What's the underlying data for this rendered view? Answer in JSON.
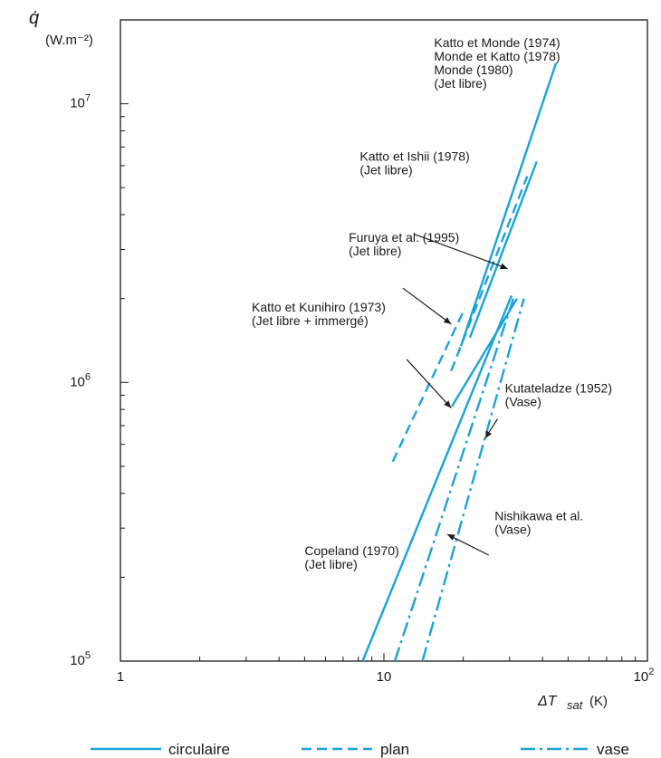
{
  "chart_data": {
    "type": "line",
    "x_scale": "log",
    "y_scale": "log",
    "xlim": [
      1,
      100
    ],
    "ylim": [
      100000,
      20000000
    ],
    "grid": false,
    "legend_position": "bottom",
    "ylabel": {
      "symbol": "q̇",
      "unit": "(W.m⁻²)"
    },
    "xlabel": {
      "main": "ΔT",
      "sub": "sat",
      "unit": "(K)"
    },
    "x_ticks": [
      {
        "value": 1,
        "base": "1",
        "exp": ""
      },
      {
        "value": 10,
        "base": "10",
        "exp": ""
      },
      {
        "value": 100,
        "base": "10",
        "exp": "2"
      }
    ],
    "y_ticks": [
      {
        "value": 100000,
        "base": "10",
        "exp": "5"
      },
      {
        "value": 1000000,
        "base": "10",
        "exp": "6"
      },
      {
        "value": 10000000,
        "base": "10",
        "exp": "7"
      }
    ],
    "series": [
      {
        "style": "circulaire",
        "points": [
          [
            19.6,
            1350000
          ],
          [
            45.0,
            14000000
          ]
        ]
      },
      {
        "style": "circulaire",
        "points": [
          [
            21.2,
            1450000
          ],
          [
            38.0,
            6200000
          ]
        ]
      },
      {
        "style": "plan",
        "points": [
          [
            18.0,
            1100000
          ],
          [
            35.0,
            5500000
          ]
        ]
      },
      {
        "style": "plan",
        "points": [
          [
            10.8,
            520000
          ],
          [
            20.3,
            1850000
          ]
        ]
      },
      {
        "style": "circulaire",
        "points": [
          [
            18.1,
            820000
          ],
          [
            32.0,
            2000000
          ]
        ]
      },
      {
        "style": "circulaire",
        "points": [
          [
            8.3,
            100000
          ],
          [
            30.5,
            2050000
          ]
        ]
      },
      {
        "style": "vase",
        "points": [
          [
            11.0,
            100000
          ],
          [
            31.0,
            2000000
          ]
        ]
      },
      {
        "style": "vase",
        "points": [
          [
            14.0,
            100000
          ],
          [
            34.0,
            2000000
          ]
        ]
      }
    ],
    "annotations": [
      {
        "lines": [
          "Katto et Monde (1974)",
          "Monde et Katto (1978)",
          "Monde (1980)",
          "(Jet libre)"
        ],
        "x": 15.5,
        "y": 16000000,
        "arrow": null
      },
      {
        "lines": [
          "Katto et Ishii (1978)",
          "(Jet libre)"
        ],
        "x": 8.1,
        "y": 6250000,
        "arrow": [
          [
            13.1,
            3400000
          ],
          [
            29.5,
            2560000
          ]
        ]
      },
      {
        "lines": [
          "Furuya et al. (1995)",
          "(Jet libre)"
        ],
        "x": 7.35,
        "y": 3200000,
        "arrow": [
          [
            11.8,
            2180000
          ],
          [
            18.0,
            1620000
          ]
        ]
      },
      {
        "lines": [
          "Katto et Kunihiro (1973)",
          "(Jet libre + immergé)"
        ],
        "x": 3.15,
        "y": 1800000,
        "arrow": [
          [
            12.2,
            1210000
          ],
          [
            18.0,
            810000
          ]
        ]
      },
      {
        "lines": [
          "Kutateladze (1952)",
          "(Vase)"
        ],
        "x": 28.8,
        "y": 920000,
        "arrow": [
          [
            27.0,
            740000
          ],
          [
            24.2,
            630000
          ]
        ]
      },
      {
        "lines": [
          "Nishikawa et al.",
          "(Vase)"
        ],
        "x": 26.3,
        "y": 320000,
        "arrow": [
          [
            25.0,
            240000
          ],
          [
            17.4,
            285000
          ]
        ]
      },
      {
        "lines": [
          "Copeland (1970)",
          "(Jet libre)"
        ],
        "x": 5.0,
        "y": 240000,
        "arrow": null
      }
    ],
    "legend": [
      {
        "style": "circulaire",
        "label": "circulaire"
      },
      {
        "style": "plan",
        "label": "plan"
      },
      {
        "style": "vase",
        "label": "vase"
      }
    ],
    "colors": {
      "series": "#1ba3d9",
      "axis": "#1a1a1a",
      "text": "#1a1a1a"
    }
  }
}
